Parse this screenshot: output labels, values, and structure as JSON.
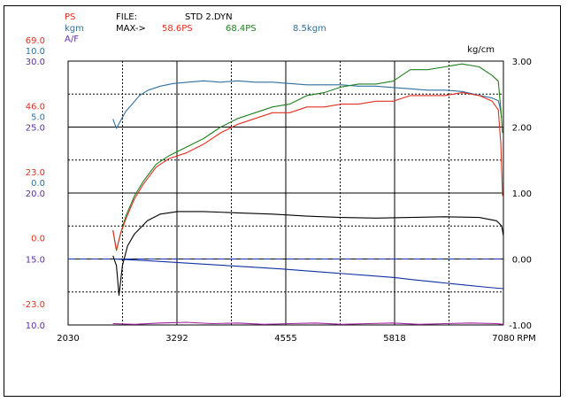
{
  "header": {
    "legend_ps": "PS",
    "legend_kgm": "kgm",
    "legend_af": "A/F",
    "file_label": "FILE:",
    "file_name": "STD 2.DYN",
    "max_label": "MAX->",
    "max_ps_1": "58.6PS",
    "max_ps_2": "68.4PS",
    "max_kgm": "8.5kgm"
  },
  "colors": {
    "ps": "#e03020",
    "kgm": "#3070a0",
    "af": "#6030a0",
    "green": "#208020",
    "black": "#000000",
    "navy": "#1030a0",
    "purple": "#a020a0",
    "dashed_ref": "#1030c0"
  },
  "left_axis_rows": [
    {
      "ps": "69.0",
      "kgm": "10.0",
      "af": "30.0"
    },
    {
      "ps": "46.0",
      "kgm": "5.0",
      "af": "25.0"
    },
    {
      "ps": "23.0",
      "kgm": "0.0",
      "af": "20.0"
    },
    {
      "ps": "0.0",
      "kgm": "",
      "af": "15.0"
    },
    {
      "ps": "-23.0",
      "kgm": "",
      "af": "10.0"
    }
  ],
  "chart_data": {
    "type": "line",
    "xlabel": "RPM",
    "x_ticks": [
      "2030",
      "3292",
      "4555",
      "5818",
      "7080"
    ],
    "xlim": [
      2030,
      7080
    ],
    "right_ylabel": "kg/cm",
    "right_ticks": [
      "3.00",
      "2.00",
      "1.00",
      "0.00",
      "-1.00"
    ],
    "right_ylim": [
      -1.0,
      3.0
    ],
    "grid": true,
    "series": [
      {
        "name": "kgm",
        "color_key": "kgm",
        "axis": "kgm",
        "x": [
          2550,
          2590,
          2640,
          2700,
          2780,
          2860,
          2960,
          3100,
          3250,
          3420,
          3600,
          3800,
          4000,
          4200,
          4400,
          4600,
          4800,
          5000,
          5200,
          5400,
          5600,
          5800,
          6000,
          6200,
          6400,
          6600,
          6800,
          6950,
          7020,
          7040,
          7060
        ],
        "y": [
          5.6,
          4.9,
          5.5,
          6.2,
          6.8,
          7.4,
          7.8,
          8.1,
          8.3,
          8.4,
          8.5,
          8.4,
          8.5,
          8.4,
          8.4,
          8.3,
          8.2,
          8.2,
          8.2,
          8.1,
          8.1,
          8.0,
          7.9,
          7.8,
          7.8,
          7.7,
          7.4,
          7.2,
          7.0,
          6.5,
          5.7
        ]
      },
      {
        "name": "",
        "color_key": "green",
        "axis": "ps",
        "x": [
          2550,
          2590,
          2640,
          2700,
          2800,
          2900,
          3050,
          3200,
          3400,
          3600,
          3800,
          4000,
          4200,
          4400,
          4600,
          4800,
          5000,
          5200,
          5400,
          5600,
          5800,
          5900,
          6000,
          6200,
          6400,
          6600,
          6800,
          6950,
          7020,
          7050,
          7070
        ],
        "y": [
          10,
          3,
          9,
          15,
          22,
          27,
          33,
          36,
          39,
          42,
          46,
          49,
          51,
          53,
          54,
          57,
          58,
          60,
          61,
          61,
          62,
          64,
          66,
          66,
          67,
          68,
          67,
          64,
          62,
          52,
          44
        ]
      },
      {
        "name": "",
        "color_key": "ps",
        "axis": "ps",
        "x": [
          2550,
          2590,
          2640,
          2700,
          2800,
          2900,
          3050,
          3200,
          3400,
          3600,
          3800,
          4000,
          4200,
          4400,
          4600,
          4800,
          5000,
          5200,
          5400,
          5600,
          5800,
          5900,
          6000,
          6200,
          6400,
          6600,
          6800,
          6950,
          7020,
          7050,
          7070
        ],
        "y": [
          10,
          3,
          9,
          14,
          21,
          26,
          32,
          35,
          37,
          40,
          44,
          47,
          49,
          51,
          51,
          53,
          53,
          54,
          54,
          55,
          55,
          56,
          57,
          57,
          57,
          58,
          57,
          55,
          52,
          40,
          22
        ]
      },
      {
        "name": "",
        "color_key": "black",
        "axis": "kg",
        "x": [
          2550,
          2590,
          2620,
          2660,
          2720,
          2800,
          2950,
          3100,
          3300,
          3600,
          4000,
          4400,
          4800,
          5200,
          5600,
          6000,
          6400,
          6800,
          7000,
          7060,
          7080
        ],
        "y": [
          0.05,
          -0.1,
          -0.55,
          -0.1,
          0.2,
          0.38,
          0.58,
          0.68,
          0.72,
          0.72,
          0.7,
          0.68,
          0.65,
          0.63,
          0.62,
          0.63,
          0.64,
          0.63,
          0.58,
          0.5,
          0.35
        ]
      },
      {
        "name": "",
        "color_key": "navy",
        "axis": "kg",
        "x": [
          2560,
          3000,
          3500,
          4000,
          4500,
          5000,
          5500,
          5818,
          6000,
          6300,
          6600,
          6900,
          7080
        ],
        "y": [
          0.0,
          -0.03,
          -0.07,
          -0.11,
          -0.15,
          -0.2,
          -0.25,
          -0.28,
          -0.31,
          -0.35,
          -0.39,
          -0.43,
          -0.45
        ]
      },
      {
        "name": "",
        "color_key": "purple",
        "axis": "kg",
        "x": [
          2550,
          2800,
          3100,
          3400,
          3700,
          4000,
          4300,
          4600,
          4900,
          5200,
          5500,
          5800,
          6100,
          6400,
          6700,
          7000,
          7080
        ],
        "y": [
          -0.98,
          -0.99,
          -0.97,
          -0.96,
          -0.98,
          -0.97,
          -0.99,
          -0.98,
          -0.97,
          -0.99,
          -0.98,
          -0.97,
          -0.99,
          -0.98,
          -0.97,
          -0.98,
          -0.99
        ]
      }
    ],
    "reference_line": {
      "axis": "kg",
      "y": 0.0,
      "style": "dashed"
    }
  }
}
